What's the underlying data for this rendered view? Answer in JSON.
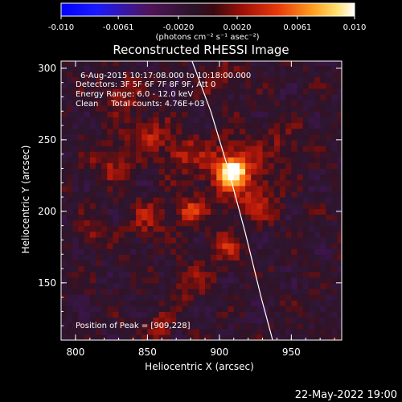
{
  "chart_data": {
    "type": "heatmap",
    "title": "Reconstructed RHESSI Image",
    "xlabel": "Heliocentric X (arcsec)",
    "ylabel": "Heliocentric Y (arcsec)",
    "xlim": [
      790,
      985
    ],
    "ylim": [
      110,
      305
    ],
    "x_ticks": [
      "800",
      "850",
      "900",
      "950"
    ],
    "y_ticks": [
      "150",
      "200",
      "250",
      "300"
    ],
    "x_tick_values": [
      800,
      850,
      900,
      950
    ],
    "y_tick_values": [
      150,
      200,
      250,
      300
    ],
    "colorbar": {
      "ticks": [
        "-0.010",
        "-0.0061",
        "-0.0020",
        "0.0020",
        "0.0061",
        "0.010"
      ],
      "tick_values": [
        -0.01,
        -0.0061,
        -0.002,
        0.002,
        0.0061,
        0.01
      ],
      "range": [
        -0.01,
        0.01
      ],
      "units_label": "(photons cm⁻² s⁻¹ asec⁻²)"
    },
    "annotations": [
      "6-Aug-2015 10:17:08.000 to 10:18:00.000",
      "Detectors: 3F 5F 6F 7F 8F 9F, Att 0",
      "Energy Range: 6.0 - 12.0 keV",
      "Clean     Total counts: 4.76E+03"
    ],
    "peak_label": "Position of Peak = [909,228]",
    "peak": [
      909,
      228
    ],
    "limb_points": [
      [
        881,
        305
      ],
      [
        894,
        270
      ],
      [
        906,
        230
      ],
      [
        918,
        185
      ],
      [
        929,
        140
      ],
      [
        937,
        110
      ]
    ],
    "sources": [
      {
        "x": 909,
        "y": 228,
        "amp": 0.01,
        "sigma": 6
      },
      {
        "x": 909,
        "y": 228,
        "amp": 0.0035,
        "sigma": 16
      },
      {
        "x": 880,
        "y": 200,
        "amp": 0.0045,
        "sigma": 6
      },
      {
        "x": 873,
        "y": 240,
        "amp": 0.003,
        "sigma": 9
      },
      {
        "x": 850,
        "y": 255,
        "amp": 0.003,
        "sigma": 9
      },
      {
        "x": 832,
        "y": 282,
        "amp": 0.0028,
        "sigma": 8
      },
      {
        "x": 825,
        "y": 235,
        "amp": 0.0025,
        "sigma": 10
      },
      {
        "x": 850,
        "y": 195,
        "amp": 0.0022,
        "sigma": 10
      },
      {
        "x": 905,
        "y": 175,
        "amp": 0.003,
        "sigma": 8
      },
      {
        "x": 928,
        "y": 205,
        "amp": 0.0025,
        "sigma": 9
      },
      {
        "x": 815,
        "y": 185,
        "amp": 0.0018,
        "sigma": 8
      },
      {
        "x": 880,
        "y": 150,
        "amp": 0.002,
        "sigma": 9
      },
      {
        "x": 945,
        "y": 250,
        "amp": 0.0015,
        "sigma": 10
      },
      {
        "x": 858,
        "y": 120,
        "amp": 0.003,
        "sigma": 6
      },
      {
        "x": 900,
        "y": 295,
        "amp": 0.002,
        "sigma": 9
      }
    ]
  },
  "footer": {
    "timestamp": "22-May-2022 19:00"
  }
}
